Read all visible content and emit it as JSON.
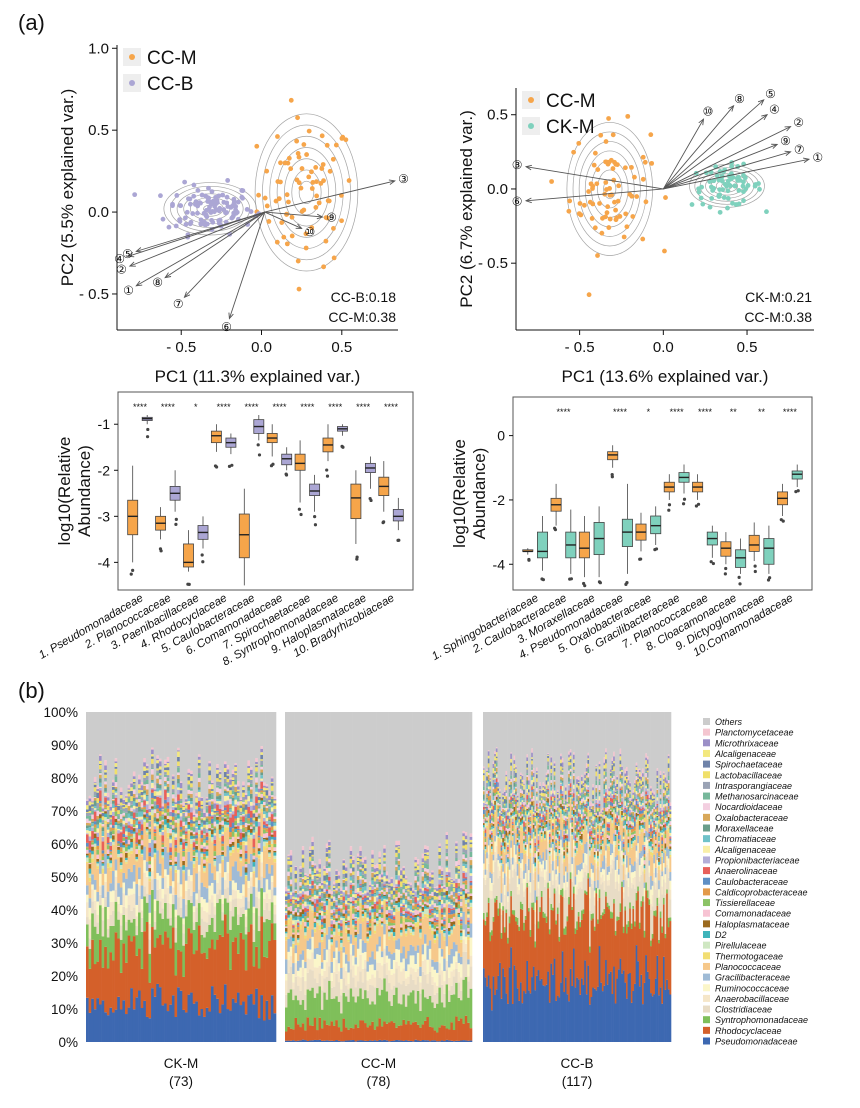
{
  "panel_labels": {
    "a": "(a)",
    "b": "(b)"
  },
  "colors": {
    "orange": "#f6a54a",
    "lavender": "#aba6d4",
    "teal": "#7fd1bd",
    "contour": "#8c8c8c",
    "arrow": "#555555",
    "sig": "#333333"
  },
  "chart_data": [
    {
      "type": "scatter",
      "title": "",
      "xlabel": "PC1 (11.3% explained var.)",
      "ylabel": "PC2 (5.5% explained var.)",
      "xlim": [
        -0.9,
        0.85
      ],
      "ylim": [
        -0.72,
        1.02
      ],
      "xticks": [
        -0.5,
        0.0,
        0.5
      ],
      "xtick_labels": [
        "- 0.5",
        "0.0",
        "0.5"
      ],
      "yticks": [
        -0.5,
        0.0,
        0.5,
        1.0
      ],
      "ytick_labels": [
        "- 0.5",
        "0.0",
        "0.5",
        "1.0"
      ],
      "legend": [
        "CC-M",
        "CC-B"
      ],
      "groups": [
        {
          "name": "CC-M",
          "color": "#f6a54a",
          "center": [
            0.28,
            0.12
          ],
          "spread": [
            0.2,
            0.3
          ],
          "n": 78
        },
        {
          "name": "CC-B",
          "color": "#aba6d4",
          "center": [
            -0.32,
            0.02
          ],
          "spread": [
            0.18,
            0.1
          ],
          "n": 117
        }
      ],
      "arrow_origin": [
        0.02,
        0.0
      ],
      "loadings": [
        {
          "label": "①",
          "x": -0.78,
          "y": -0.45
        },
        {
          "label": "②",
          "x": -0.82,
          "y": -0.33
        },
        {
          "label": "③",
          "x": 0.83,
          "y": 0.19
        },
        {
          "label": "④",
          "x": -0.83,
          "y": -0.27
        },
        {
          "label": "⑤",
          "x": -0.78,
          "y": -0.24
        },
        {
          "label": "⑥",
          "x": -0.2,
          "y": -0.65
        },
        {
          "label": "⑦",
          "x": -0.48,
          "y": -0.52
        },
        {
          "label": "⑧",
          "x": -0.6,
          "y": -0.4
        },
        {
          "label": "⑨",
          "x": 0.38,
          "y": -0.03
        },
        {
          "label": "⑩",
          "x": 0.25,
          "y": -0.1
        }
      ],
      "annotations": [
        "CC-B:0.18",
        "CC-M:0.38"
      ]
    },
    {
      "type": "scatter",
      "title": "",
      "xlabel": "PC1 (13.6% explained var.)",
      "ylabel": "PC2 (6.7% explained var.)",
      "xlim": [
        -0.88,
        0.9
      ],
      "ylim": [
        -0.95,
        0.68
      ],
      "xticks": [
        -0.5,
        0.0,
        0.5
      ],
      "xtick_labels": [
        "- 0.5",
        "0.0",
        "0.5"
      ],
      "yticks": [
        -0.5,
        0.0,
        0.5
      ],
      "ytick_labels": [
        "- 0.5",
        "0.0",
        "0.5"
      ],
      "legend": [
        "CC-M",
        "CK-M"
      ],
      "groups": [
        {
          "name": "CC-M",
          "color": "#f6a54a",
          "center": [
            -0.32,
            0.0
          ],
          "spread": [
            0.16,
            0.28
          ],
          "n": 78
        },
        {
          "name": "CK-M",
          "color": "#7fd1bd",
          "center": [
            0.38,
            0.02
          ],
          "spread": [
            0.14,
            0.09
          ],
          "n": 73
        }
      ],
      "arrow_origin": [
        0.0,
        0.0
      ],
      "loadings": [
        {
          "label": "①",
          "x": 0.87,
          "y": 0.2
        },
        {
          "label": "②",
          "x": 0.76,
          "y": 0.42
        },
        {
          "label": "③",
          "x": -0.82,
          "y": 0.15
        },
        {
          "label": "④",
          "x": 0.62,
          "y": 0.5
        },
        {
          "label": "⑤",
          "x": 0.6,
          "y": 0.6
        },
        {
          "label": "⑥",
          "x": -0.82,
          "y": -0.08
        },
        {
          "label": "⑦",
          "x": 0.76,
          "y": 0.25
        },
        {
          "label": "⑧",
          "x": 0.42,
          "y": 0.56
        },
        {
          "label": "⑨",
          "x": 0.68,
          "y": 0.3
        },
        {
          "label": "⑩",
          "x": 0.24,
          "y": 0.47
        }
      ],
      "annotations": [
        "CK-M:0.21",
        "CC-M:0.38"
      ]
    },
    {
      "type": "box",
      "ylabel": "log10(Relative\nAbundance)",
      "ylim": [
        -4.6,
        -0.3
      ],
      "yticks": [
        -1,
        -2,
        -3,
        -4
      ],
      "ytick_labels": [
        "-1",
        "-2",
        "-3",
        "-4"
      ],
      "categories": [
        "1. Pseudomonadaceae",
        "2. Planococcaceae",
        "3. Paenibacillaceae",
        "4. Rhodocyclaceae",
        "5. Caulobacteraceae",
        "6. Comamonadaceae",
        "7. Spirochaetaceae",
        "8. Syntrophomonadaceae",
        "9. Haloplasmataceae",
        "10. Bradyrhizobiaceae"
      ],
      "series_names": [
        "CC-M",
        "CC-B"
      ],
      "significance": [
        "****",
        "****",
        "*",
        "****",
        "****",
        "****",
        "****",
        "****",
        "****",
        "****"
      ],
      "boxes": [
        [
          [
            -4.0,
            -3.4,
            -3.0,
            -2.65,
            -1.9
          ],
          [
            -1.0,
            -0.92,
            -0.88,
            -0.85,
            -0.8
          ]
        ],
        [
          [
            -3.5,
            -3.3,
            -3.15,
            -3.0,
            -2.8
          ],
          [
            -2.9,
            -2.65,
            -2.5,
            -2.35,
            -2.0
          ]
        ],
        [
          [
            -4.2,
            -4.1,
            -4.0,
            -3.6,
            -3.3
          ],
          [
            -3.7,
            -3.5,
            -3.35,
            -3.2,
            -3.0
          ]
        ],
        [
          [
            -1.6,
            -1.4,
            -1.25,
            -1.15,
            -1.0
          ],
          [
            -1.65,
            -1.5,
            -1.4,
            -1.3,
            -1.2
          ]
        ],
        [
          [
            -4.5,
            -3.9,
            -3.4,
            -2.95,
            -2.4
          ],
          [
            -1.35,
            -1.2,
            -1.05,
            -0.9,
            -0.8
          ]
        ],
        [
          [
            -1.7,
            -1.4,
            -1.3,
            -1.2,
            -1.0
          ],
          [
            -2.0,
            -1.88,
            -1.75,
            -1.65,
            -1.5
          ]
        ],
        [
          [
            -2.7,
            -2.0,
            -1.85,
            -1.65,
            -1.35
          ],
          [
            -2.9,
            -2.55,
            -2.45,
            -2.3,
            -2.1
          ]
        ],
        [
          [
            -1.8,
            -1.6,
            -1.45,
            -1.3,
            -1.0
          ],
          [
            -1.25,
            -1.15,
            -1.1,
            -1.05,
            -1.0
          ]
        ],
        [
          [
            -3.6,
            -3.05,
            -2.6,
            -2.3,
            -2.0
          ],
          [
            -2.4,
            -2.05,
            -1.95,
            -1.85,
            -1.7
          ]
        ],
        [
          [
            -2.9,
            -2.55,
            -2.35,
            -2.15,
            -1.8
          ],
          [
            -3.3,
            -3.1,
            -3.0,
            -2.85,
            -2.6
          ]
        ]
      ]
    },
    {
      "type": "box",
      "ylabel": "log10(Relative\nAbundance)",
      "ylim": [
        -4.8,
        1.2
      ],
      "yticks": [
        0,
        -2,
        -4
      ],
      "ytick_labels": [
        "0",
        "-2",
        "-4"
      ],
      "categories": [
        "1. Sphingobacteriaceae",
        "2. Caulobacteraceae",
        "3. Moraxellaceae",
        "4. Pseudomonadaceae",
        "5. Oxalobacteraceae",
        "6. Gracilibacteraceae",
        "7. Planococcaceae",
        "8. Cloacamonaceae",
        "9. Dictyoglomaceae",
        "10.Comamonadaceae"
      ],
      "series_names": [
        "CC-M",
        "CK-M"
      ],
      "significance": [
        "",
        "****",
        "",
        "****",
        "*",
        "****",
        "****",
        "**",
        "**",
        "****"
      ],
      "boxes": [
        [
          [
            -3.7,
            -3.6,
            -3.6,
            -3.55,
            -3.5
          ],
          [
            -4.2,
            -3.8,
            -3.6,
            -3.0,
            -2.5
          ]
        ],
        [
          [
            -2.8,
            -2.35,
            -2.15,
            -1.95,
            -1.5
          ],
          [
            -4.3,
            -3.8,
            -3.4,
            -3.0,
            -2.3
          ]
        ],
        [
          [
            -4.4,
            -3.8,
            -3.5,
            -3.0,
            -2.5
          ],
          [
            -4.4,
            -3.7,
            -3.2,
            -2.7,
            -2.2
          ]
        ],
        [
          [
            -1.0,
            -0.75,
            -0.6,
            -0.5,
            -0.3
          ],
          [
            -4.3,
            -3.45,
            -3.0,
            -2.6,
            -1.5
          ]
        ],
        [
          [
            -3.6,
            -3.25,
            -3.0,
            -2.75,
            -2.4
          ],
          [
            -3.4,
            -3.05,
            -2.8,
            -2.5,
            -2.2
          ]
        ],
        [
          [
            -2.0,
            -1.75,
            -1.6,
            -1.45,
            -1.2
          ],
          [
            -1.8,
            -1.45,
            -1.3,
            -1.15,
            -0.9
          ]
        ],
        [
          [
            -2.0,
            -1.75,
            -1.6,
            -1.45,
            -1.2
          ],
          [
            -3.8,
            -3.4,
            -3.2,
            -3.0,
            -2.8
          ]
        ],
        [
          [
            -4.0,
            -3.75,
            -3.5,
            -3.3,
            -3.0
          ],
          [
            -4.3,
            -4.1,
            -3.8,
            -3.55,
            -3.2
          ]
        ],
        [
          [
            -3.9,
            -3.6,
            -3.4,
            -3.1,
            -2.7
          ],
          [
            -4.3,
            -4.0,
            -3.5,
            -3.2,
            -2.8
          ]
        ],
        [
          [
            -2.5,
            -2.15,
            -1.95,
            -1.75,
            -1.5
          ],
          [
            -1.6,
            -1.35,
            -1.2,
            -1.1,
            -0.9
          ]
        ]
      ]
    },
    {
      "type": "stacked_bar",
      "ylim": [
        0,
        100
      ],
      "yticks": [
        0,
        10,
        20,
        30,
        40,
        50,
        60,
        70,
        80,
        90,
        100
      ],
      "ytick_labels": [
        "0%",
        "10%",
        "20%",
        "30%",
        "40%",
        "50%",
        "60%",
        "70%",
        "80%",
        "90%",
        "100%"
      ],
      "groups": [
        {
          "name": "CK-M",
          "n_label": "(73)",
          "n": 73,
          "profile": [
            13,
            20,
            9,
            4,
            4,
            3,
            5,
            7,
            1,
            1,
            1,
            1,
            1,
            1,
            1,
            1,
            2,
            1,
            1,
            1,
            1,
            1,
            1,
            1,
            1,
            1,
            1,
            1,
            1,
            1
          ]
        },
        {
          "name": "CC-M",
          "n_label": "(78)",
          "n": 78,
          "profile": [
            0.5,
            6,
            10,
            6,
            4,
            4,
            4,
            7,
            1,
            1,
            1,
            1,
            1,
            1,
            1,
            1,
            1,
            1,
            1,
            1,
            1,
            1,
            1,
            1,
            1,
            1,
            1,
            1,
            1,
            1
          ]
        },
        {
          "name": "CC-B",
          "n_label": "(117)",
          "n": 117,
          "profile": [
            22,
            25,
            2,
            10,
            3,
            3,
            3,
            6,
            1,
            1,
            1,
            1,
            1,
            1,
            1,
            1,
            1,
            1,
            1,
            1,
            1,
            1,
            1,
            1,
            1,
            1,
            1,
            1,
            1,
            1
          ]
        }
      ],
      "legend_title": "",
      "legend": [
        {
          "name": "Others",
          "color": "#cccccc"
        },
        {
          "name": "Planctomycetaceae",
          "color": "#f4c6d0"
        },
        {
          "name": "Microthrixaceae",
          "color": "#9b8fc7"
        },
        {
          "name": "Alcaligenaceae",
          "color": "#f3e87e"
        },
        {
          "name": "Spirochaetaceae",
          "color": "#6f83a9"
        },
        {
          "name": "Lactobacillaceae",
          "color": "#f0e06a"
        },
        {
          "name": "Intrasporangiaceae",
          "color": "#9aa3b5"
        },
        {
          "name": "Methanosarcinaceae",
          "color": "#77b89b"
        },
        {
          "name": "Nocardioidaceae",
          "color": "#f3cfe0"
        },
        {
          "name": "Oxalobacteraceae",
          "color": "#d8a85a"
        },
        {
          "name": "Moraxellaceae",
          "color": "#6a9e8b"
        },
        {
          "name": "Chromatiaceae",
          "color": "#6fc2c9"
        },
        {
          "name": "Alcaligenaceae",
          "color": "#f9efa8"
        },
        {
          "name": "Propionibacteriaceae",
          "color": "#b4aed8"
        },
        {
          "name": "Anaerolinaceae",
          "color": "#e8605a"
        },
        {
          "name": "Caulobacteraceae",
          "color": "#5f8fc4"
        },
        {
          "name": "Caldicoprobacteraceae",
          "color": "#e39a4a"
        },
        {
          "name": "Tissierellaceae",
          "color": "#8cc366"
        },
        {
          "name": "Comamonadaceae",
          "color": "#f7c3d3"
        },
        {
          "name": "Haloplasmataceae",
          "color": "#9b6a1e"
        },
        {
          "name": "D2",
          "color": "#3fb4ba"
        },
        {
          "name": "Pirellulaceae",
          "color": "#cfe7c2"
        },
        {
          "name": "Thermotogaceae",
          "color": "#f2de73"
        },
        {
          "name": "Planococcaceae",
          "color": "#f6c88a"
        },
        {
          "name": "Gracilibacteraceae",
          "color": "#9fbbd6"
        },
        {
          "name": "Ruminococcaceae",
          "color": "#fbf6c9"
        },
        {
          "name": "Anaerobacillaceae",
          "color": "#f5e6c8"
        },
        {
          "name": "Clostridiaceae",
          "color": "#e8dcc5"
        },
        {
          "name": "Syntrophomonadaceae",
          "color": "#7fbf5a"
        },
        {
          "name": "Rhodocyclaceae",
          "color": "#d4602a"
        },
        {
          "name": "Pseudomonadaceae",
          "color": "#3d68b1"
        }
      ]
    }
  ]
}
